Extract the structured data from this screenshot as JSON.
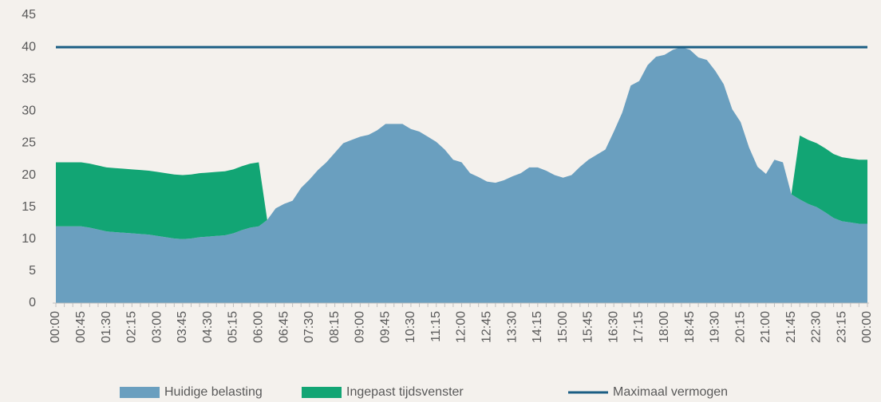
{
  "chart_data": {
    "type": "area",
    "stacked": true,
    "categories": [
      "00:00",
      null,
      null,
      "00:45",
      null,
      null,
      "01:30",
      null,
      null,
      "02:15",
      null,
      null,
      "03:00",
      null,
      null,
      "03:45",
      null,
      null,
      "04:30",
      null,
      null,
      "05:15",
      null,
      null,
      "06:00",
      null,
      null,
      "06:45",
      null,
      null,
      "07:30",
      null,
      null,
      "08:15",
      null,
      null,
      "09:00",
      null,
      null,
      "09:45",
      null,
      null,
      "10:30",
      null,
      null,
      "11:15",
      null,
      null,
      "12:00",
      null,
      null,
      "12:45",
      null,
      null,
      "13:30",
      null,
      null,
      "14:15",
      null,
      null,
      "15:00",
      null,
      null,
      "15:45",
      null,
      null,
      "16:30",
      null,
      null,
      "17:15",
      null,
      null,
      "18:00",
      null,
      null,
      "18:45",
      null,
      null,
      "19:30",
      null,
      null,
      "20:15",
      null,
      null,
      "21:00",
      null,
      null,
      "21:45",
      null,
      null,
      "22:30",
      null,
      null,
      "23:15",
      null,
      null,
      "00:00"
    ],
    "series": [
      {
        "name": "Huidige belasting",
        "color": "#6a9fbf",
        "values": [
          12,
          12,
          12,
          12,
          11.8,
          11.5,
          11.2,
          11.1,
          11,
          10.9,
          10.8,
          10.7,
          10.5,
          10.3,
          10.1,
          10,
          10.1,
          10.3,
          10.4,
          10.5,
          10.6,
          10.9,
          11.4,
          11.8,
          12,
          13,
          14.8,
          15.5,
          16,
          18,
          19.3,
          20.8,
          22,
          23.5,
          25,
          25.5,
          26,
          26.3,
          27,
          28,
          28,
          28,
          27.2,
          26.8,
          26,
          25.2,
          24,
          22.4,
          22,
          20.3,
          19.7,
          19,
          18.8,
          19.2,
          19.8,
          20.3,
          21.2,
          21.2,
          20.7,
          20,
          19.6,
          20,
          21.3,
          22.4,
          23.2,
          24,
          26.8,
          29.8,
          34,
          34.7,
          37.2,
          38.5,
          38.8,
          39.6,
          40,
          39.6,
          38.4,
          38,
          36.3,
          34.2,
          30.3,
          28.3,
          24.3,
          21.3,
          20.2,
          22.4,
          22,
          17,
          16.2,
          15.5,
          15,
          14.2,
          13.3,
          12.8,
          12.6,
          12.4,
          12.4
        ]
      },
      {
        "name": "Ingepast tijdsvenster",
        "color": "#12a574",
        "values": [
          10,
          10,
          10,
          10,
          10,
          10,
          10,
          10,
          10,
          10,
          10,
          10,
          10,
          10,
          10,
          10,
          10,
          10,
          10,
          10,
          10,
          10,
          10,
          10,
          10,
          0,
          0,
          0,
          0,
          0,
          0,
          0,
          0,
          0,
          0,
          0,
          0,
          0,
          0,
          0,
          0,
          0,
          0,
          0,
          0,
          0,
          0,
          0,
          0,
          0,
          0,
          0,
          0,
          0,
          0,
          0,
          0,
          0,
          0,
          0,
          0,
          0,
          0,
          0,
          0,
          0,
          0,
          0,
          0,
          0,
          0,
          0,
          0,
          0,
          0,
          0,
          0,
          0,
          0,
          0,
          0,
          0,
          0,
          0,
          0,
          0,
          0,
          0,
          10,
          10,
          10,
          10,
          10,
          10,
          10,
          10,
          10
        ]
      },
      {
        "name": "Maximaal vermogen",
        "color": "#1b5e84",
        "type": "line",
        "values": [
          40,
          40,
          40,
          40,
          40,
          40,
          40,
          40,
          40,
          40,
          40,
          40,
          40,
          40,
          40,
          40,
          40,
          40,
          40,
          40,
          40,
          40,
          40,
          40,
          40,
          40,
          40,
          40,
          40,
          40,
          40,
          40,
          40,
          40,
          40,
          40,
          40,
          40,
          40,
          40,
          40,
          40,
          40,
          40,
          40,
          40,
          40,
          40,
          40,
          40,
          40,
          40,
          40,
          40,
          40,
          40,
          40,
          40,
          40,
          40,
          40,
          40,
          40,
          40,
          40,
          40,
          40,
          40,
          40,
          40,
          40,
          40,
          40,
          40,
          40,
          40,
          40,
          40,
          40,
          40,
          40,
          40,
          40,
          40,
          40,
          40,
          40,
          40,
          40,
          40,
          40,
          40,
          40,
          40,
          40,
          40,
          40
        ]
      }
    ],
    "ylim": [
      0,
      45
    ],
    "yticks": [
      0,
      5,
      10,
      15,
      20,
      25,
      30,
      35,
      40,
      45
    ],
    "grid": false,
    "legend": "bottom"
  }
}
